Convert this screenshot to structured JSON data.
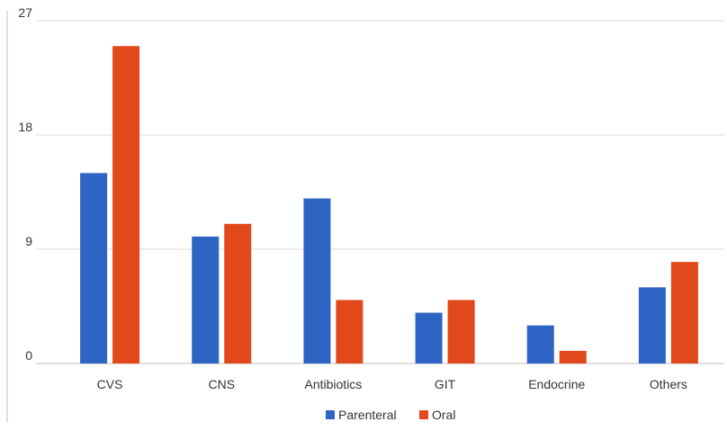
{
  "chart_data": {
    "type": "bar",
    "categories": [
      "CVS",
      "CNS",
      "Antibiotics",
      "GIT",
      "Endocrine",
      "Others"
    ],
    "series": [
      {
        "name": "Parenteral",
        "values": [
          15,
          10,
          13,
          4,
          3,
          6
        ],
        "color": "#2E64C4"
      },
      {
        "name": "Oral",
        "values": [
          25,
          11,
          5,
          5,
          1,
          8
        ],
        "color": "#E2491A"
      }
    ],
    "ylim": [
      0,
      27
    ],
    "yticks": [
      "0",
      "9",
      "18",
      "27"
    ],
    "grid": true,
    "legend_position": "bottom"
  }
}
